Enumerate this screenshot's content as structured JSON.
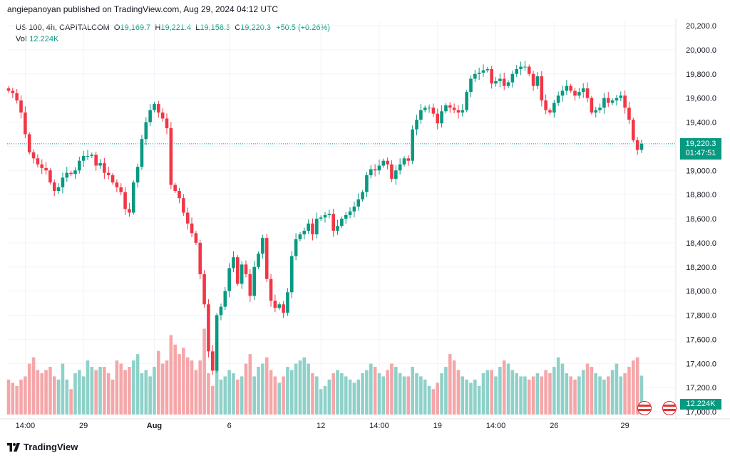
{
  "header": {
    "published_line": "angiepanoyan published on TradingView.com, Aug 29, 2024 04:12 UTC"
  },
  "legend": {
    "symbol": "US 100, 4h, CAPITALCOM",
    "o_label": "O",
    "o_value": "19,169.7",
    "h_label": "H",
    "h_value": "19,221.4",
    "l_label": "L",
    "l_value": "19,158.3",
    "c_label": "C",
    "c_value": "19,220.3",
    "change": "+50.5 (+0.26%)",
    "vol_label": "Vol",
    "vol_value": "12.224K"
  },
  "last_price": {
    "price": "19,220.3",
    "countdown": "01:47:51"
  },
  "volume_tag": "12.224K",
  "footer": {
    "brand": "TradingView"
  },
  "colors": {
    "up": "#089981",
    "down": "#f23645",
    "vol_up": "#8ed1c9",
    "vol_down": "#f5a6a9",
    "grid": "#f0f3fa",
    "axis_text": "#131722"
  },
  "icons": [
    "event-flag-icon",
    "event-flag-icon",
    "tradingview-logo-icon"
  ],
  "chart_data": {
    "type": "candlestick",
    "title": "US 100, 4h, CAPITALCOM",
    "ylim": [
      17000,
      20200
    ],
    "y_ticks": [
      17000,
      17200,
      17400,
      17600,
      17800,
      18000,
      18200,
      18400,
      18600,
      18800,
      19000,
      19200,
      19400,
      19600,
      19800,
      20000,
      20200
    ],
    "y_tick_labels": [
      "17,000.0",
      "17,200.0",
      "17,400.0",
      "17,600.0",
      "17,800.0",
      "18,000.0",
      "18,200.0",
      "18,400.0",
      "18,600.0",
      "18,800.0",
      "19,000.0",
      "19,200.0",
      "19,400.0",
      "19,600.0",
      "19,800.0",
      "20,000.0",
      "20,200.0"
    ],
    "x_tick_labels": [
      {
        "index": 4,
        "label": "14:00"
      },
      {
        "index": 18,
        "label": "29"
      },
      {
        "index": 35,
        "label": "Aug"
      },
      {
        "index": 53,
        "label": "6"
      },
      {
        "index": 75,
        "label": "12"
      },
      {
        "index": 89,
        "label": "14:00"
      },
      {
        "index": 103,
        "label": "19"
      },
      {
        "index": 117,
        "label": "14:00"
      },
      {
        "index": 131,
        "label": "26"
      },
      {
        "index": 148,
        "label": "29"
      }
    ],
    "close": [
      19660,
      19640,
      19580,
      19480,
      19300,
      19150,
      19100,
      19050,
      19020,
      19000,
      18900,
      18830,
      18860,
      18940,
      18980,
      18970,
      19000,
      19080,
      19120,
      19120,
      19130,
      19040,
      19060,
      18980,
      18960,
      18900,
      18860,
      18820,
      18680,
      18650,
      18900,
      19030,
      19260,
      19400,
      19500,
      19550,
      19480,
      19430,
      19350,
      18880,
      18830,
      18770,
      18650,
      18560,
      18480,
      18400,
      18140,
      17890,
      17500,
      17340,
      17800,
      17870,
      18000,
      18190,
      18280,
      18060,
      18220,
      18140,
      17960,
      18200,
      18310,
      18440,
      18100,
      17920,
      17860,
      17890,
      17820,
      17990,
      18290,
      18430,
      18470,
      18500,
      18560,
      18470,
      18600,
      18610,
      18630,
      18640,
      18500,
      18540,
      18600,
      18630,
      18660,
      18700,
      18760,
      18820,
      18960,
      19010,
      19000,
      19040,
      19080,
      19050,
      18930,
      19000,
      19050,
      19100,
      19080,
      19340,
      19420,
      19500,
      19520,
      19520,
      19470,
      19390,
      19490,
      19540,
      19520,
      19500,
      19480,
      19500,
      19650,
      19760,
      19800,
      19810,
      19830,
      19840,
      19720,
      19740,
      19760,
      19700,
      19730,
      19800,
      19840,
      19860,
      19860,
      19800,
      19700,
      19780,
      19580,
      19500,
      19480,
      19560,
      19620,
      19660,
      19700,
      19660,
      19620,
      19650,
      19680,
      19600,
      19480,
      19500,
      19520,
      19600,
      19560,
      19580,
      19600,
      19620,
      19520,
      19420,
      19250,
      19169.7,
      19220.3
    ],
    "volume_k": [
      11,
      10,
      9,
      11,
      12,
      16,
      18,
      14,
      13,
      14,
      15,
      12,
      11,
      16,
      11,
      8,
      13,
      14,
      12,
      17,
      15,
      14,
      15,
      15,
      13,
      11,
      17,
      16,
      14,
      15,
      17,
      19,
      13,
      14,
      12,
      15,
      20,
      16,
      17,
      25,
      22,
      19,
      21,
      18,
      17,
      14,
      17,
      27,
      13,
      9,
      14,
      11,
      12,
      14,
      13,
      11,
      12,
      16,
      19,
      12,
      15,
      16,
      18,
      14,
      12,
      10,
      12,
      15,
      14,
      16,
      17,
      18,
      16,
      13,
      12,
      8,
      9,
      11,
      13,
      14,
      13,
      12,
      11,
      10,
      11,
      13,
      14,
      16,
      15,
      13,
      12,
      14,
      16,
      15,
      13,
      12,
      12,
      15,
      13,
      12,
      11,
      9,
      8,
      10,
      13,
      15,
      19,
      17,
      14,
      12,
      11,
      10,
      11,
      9,
      13,
      14,
      14,
      12,
      15,
      17,
      16,
      14,
      13,
      12,
      12,
      11,
      12,
      13,
      12,
      14,
      13,
      15,
      18,
      16,
      13,
      12,
      11,
      12,
      14,
      16,
      15,
      13,
      12,
      11,
      12,
      14,
      16,
      12,
      13,
      15,
      17,
      18,
      12.224
    ]
  }
}
